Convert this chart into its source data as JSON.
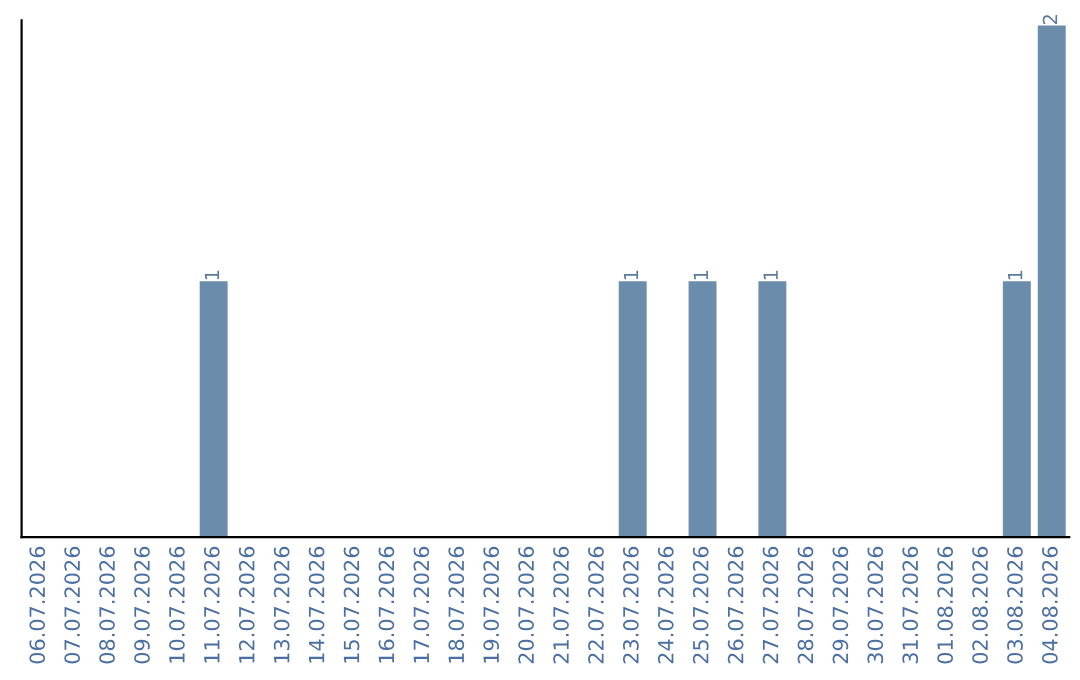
{
  "chart_data": {
    "type": "bar",
    "categories": [
      "06.07.2026",
      "07.07.2026",
      "08.07.2026",
      "09.07.2026",
      "10.07.2026",
      "11.07.2026",
      "12.07.2026",
      "13.07.2026",
      "14.07.2026",
      "15.07.2026",
      "16.07.2026",
      "17.07.2026",
      "18.07.2026",
      "19.07.2026",
      "20.07.2026",
      "21.07.2026",
      "22.07.2026",
      "23.07.2026",
      "24.07.2026",
      "25.07.2026",
      "26.07.2026",
      "27.07.2026",
      "28.07.2026",
      "29.07.2026",
      "30.07.2026",
      "31.07.2026",
      "01.08.2026",
      "02.08.2026",
      "03.08.2026",
      "04.08.2026"
    ],
    "values": [
      0,
      0,
      0,
      0,
      0,
      1,
      0,
      0,
      0,
      0,
      0,
      0,
      0,
      0,
      0,
      0,
      0,
      1,
      0,
      1,
      0,
      1,
      0,
      0,
      0,
      0,
      0,
      0,
      1,
      2
    ],
    "value_labels": [
      null,
      null,
      null,
      null,
      null,
      "1",
      null,
      null,
      null,
      null,
      null,
      null,
      null,
      null,
      null,
      null,
      null,
      "1",
      null,
      "1",
      null,
      "1",
      null,
      null,
      null,
      null,
      null,
      null,
      "1",
      "2"
    ],
    "color": "#6b8cab",
    "relative": false,
    "grid": false
  }
}
